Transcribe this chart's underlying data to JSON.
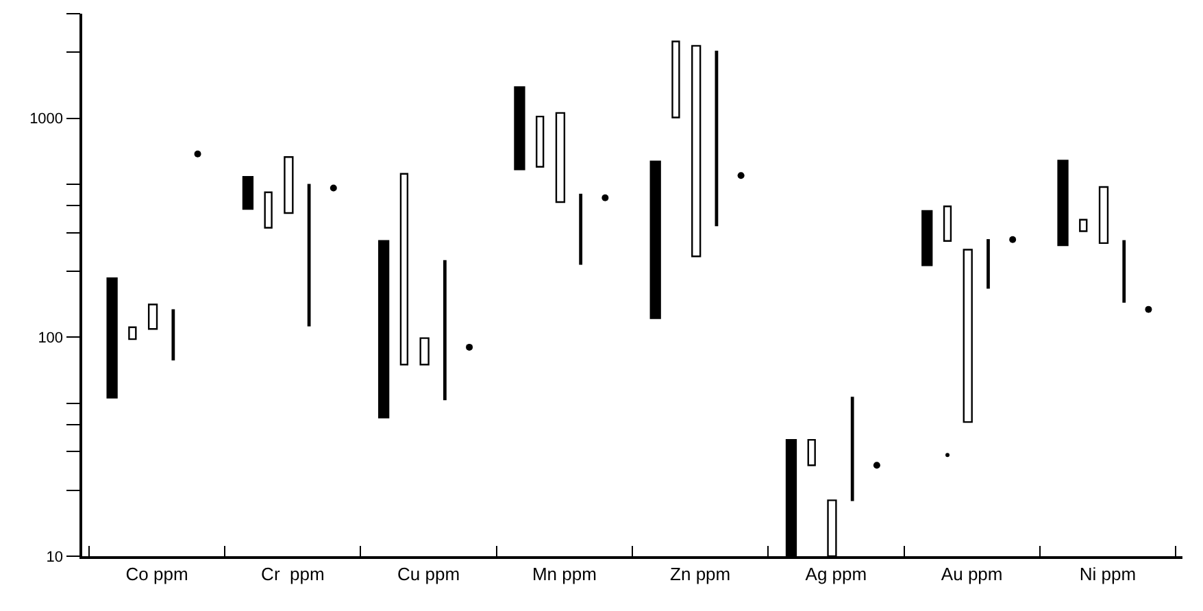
{
  "chart_data": {
    "type": "bar",
    "categories": [
      "Co ppm",
      "Cr  ppm",
      "Cu ppm",
      "Mn ppm",
      "Zn ppm",
      "Ag ppm",
      "Au ppm",
      "Ni ppm"
    ],
    "series": [
      {
        "color": "#000000",
        "base": [
          53,
          385,
          43,
          584,
          122,
          10,
          213,
          263
        ],
        "values": [
          133,
          155,
          232,
          801,
          512,
          24,
          164,
          377
        ]
      },
      {
        "color": "#ffffff",
        "base": [
          98,
          316,
          75,
          600,
          1008,
          26,
          275,
          305
        ],
        "values": [
          13,
          143,
          482,
          418,
          1232,
          8,
          121,
          39
        ]
      },
      {
        "color": "#ffffff",
        "base": [
          109,
          369,
          75,
          414,
          234,
          10,
          41,
          269
        ],
        "values": [
          32,
          296,
          24,
          643,
          1906,
          8,
          210,
          216
        ]
      },
      {
        "color": "#000000",
        "base": [
          79,
          113,
          52,
          216,
          324,
          18,
          168,
          145
        ],
        "values": [
          54,
          384,
          171,
          232,
          1693,
          35,
          110,
          130
        ]
      },
      {
        "type": "scatter",
        "color": "#000000",
        "values": [
          687,
          480,
          90,
          433,
          547,
          26,
          279,
          134
        ]
      },
      {
        "type": "scatter",
        "color": "#000000",
        "values": [
          null,
          null,
          null,
          null,
          null,
          null,
          29,
          null
        ]
      }
    ],
    "ylim": [
      10,
      3000
    ],
    "yticks": [
      10,
      {
        "value": 20,
        "label": null
      },
      {
        "value": 30,
        "label": null
      },
      {
        "value": 40,
        "label": null
      },
      {
        "value": 50,
        "label": null
      },
      100,
      {
        "value": 200,
        "label": null
      },
      {
        "value": 300,
        "label": null
      },
      {
        "value": 400,
        "label": null
      },
      {
        "value": 500,
        "label": null
      },
      1000,
      {
        "value": 2000,
        "label": null
      },
      {
        "value": 3000,
        "label": null
      }
    ],
    "log": true
  }
}
